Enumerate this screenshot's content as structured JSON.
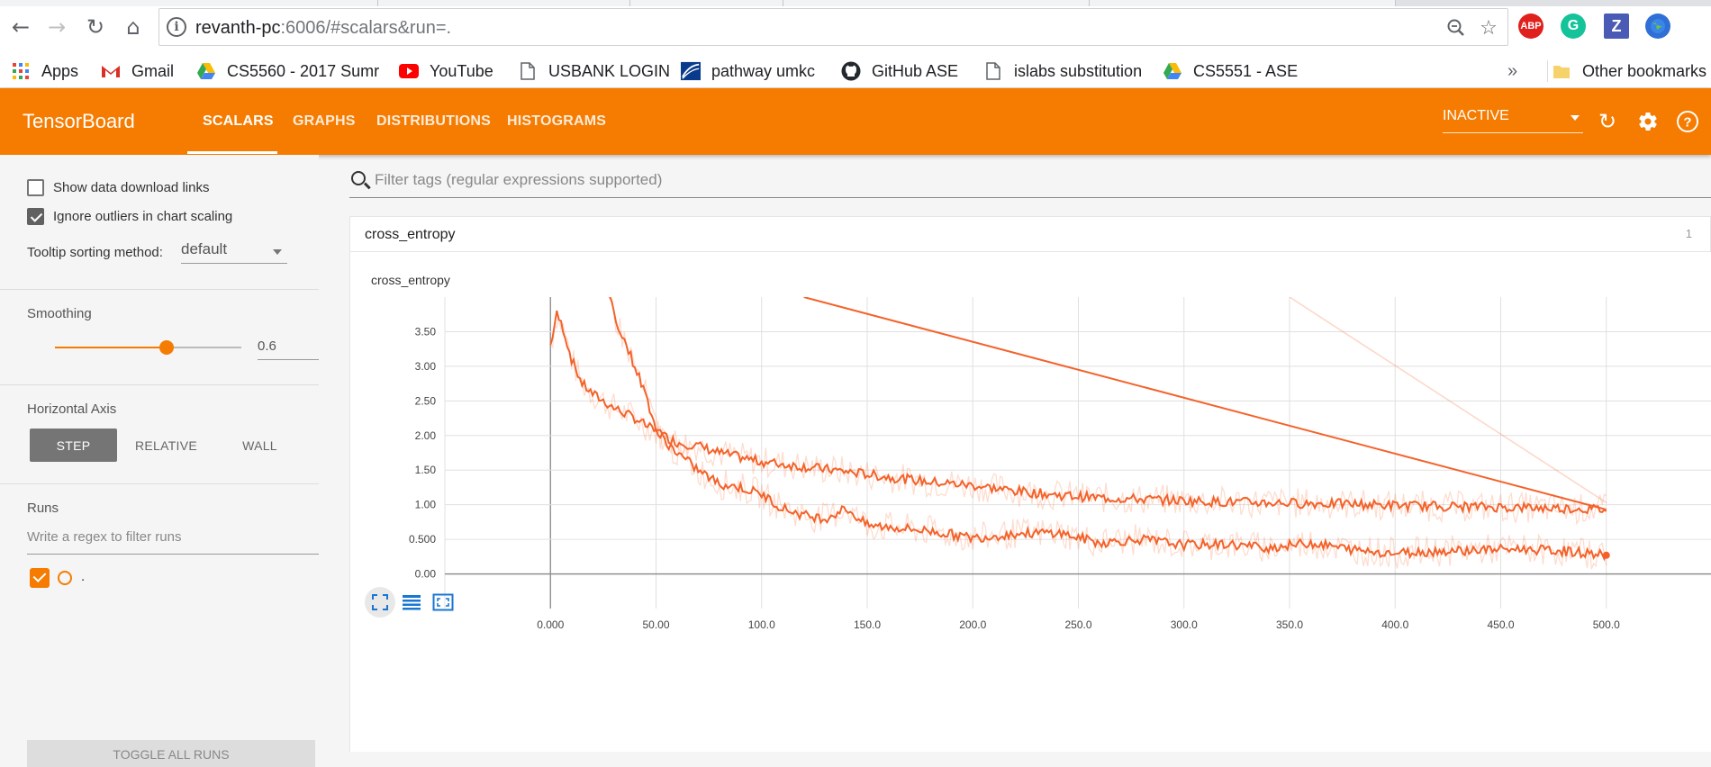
{
  "browser": {
    "url_host": "revanth-pc",
    "url_rest": ":6006/#scalars&run=.",
    "extensions": [
      "ABP",
      "G",
      "Z",
      "globe"
    ]
  },
  "bookmarks": {
    "items": [
      {
        "label": "Apps",
        "icon": "apps-grid-icon"
      },
      {
        "label": "Gmail",
        "icon": "gmail-icon"
      },
      {
        "label": "CS5560 - 2017 Sumr",
        "icon": "drive-icon"
      },
      {
        "label": "YouTube",
        "icon": "youtube-icon"
      },
      {
        "label": "USBANK LOGIN",
        "icon": "page-icon"
      },
      {
        "label": "pathway umkc",
        "icon": "pathway-icon"
      },
      {
        "label": "GitHub ASE",
        "icon": "github-icon"
      },
      {
        "label": "islabs substitution",
        "icon": "page-icon"
      },
      {
        "label": "CS5551 - ASE",
        "icon": "drive-icon"
      }
    ],
    "overflow": "»",
    "other": "Other bookmarks"
  },
  "header": {
    "title": "TensorBoard",
    "tabs": [
      "SCALARS",
      "GRAPHS",
      "DISTRIBUTIONS",
      "HISTOGRAMS"
    ],
    "active_tab": "SCALARS",
    "status": "INACTIVE",
    "accent": "#f57c00"
  },
  "sidebar": {
    "show_download": "Show data download links",
    "ignore_outliers": "Ignore outliers in chart scaling",
    "show_download_checked": false,
    "ignore_outliers_checked": true,
    "tooltip_label": "Tooltip sorting method:",
    "tooltip_value": "default",
    "smoothing_label": "Smoothing",
    "smoothing_value": "0.6",
    "smoothing_level": 0.6,
    "haxis_label": "Horizontal Axis",
    "haxis_options": [
      "STEP",
      "RELATIVE",
      "WALL"
    ],
    "haxis_selected": "STEP",
    "runs_label": "Runs",
    "runs_placeholder": "Write a regex to filter runs",
    "run_name": ".",
    "run_checked": true,
    "toggle_all": "TOGGLE ALL RUNS"
  },
  "main": {
    "filter_placeholder": "Filter tags (regular expressions supported)",
    "category": "cross_entropy",
    "category_count": "1",
    "chart_title": "cross_entropy"
  },
  "chart_data": {
    "type": "line",
    "title": "cross_entropy",
    "xlabel": "",
    "ylabel": "",
    "x_ticks": [
      "0.000",
      "50.00",
      "100.0",
      "150.0",
      "200.0",
      "250.0",
      "300.0",
      "350.0",
      "400.0",
      "450.0",
      "500.0"
    ],
    "y_ticks": [
      "0.00",
      "0.500",
      "1.00",
      "1.50",
      "2.00",
      "2.50",
      "3.00",
      "3.50"
    ],
    "xlim": [
      -50,
      550
    ],
    "ylim": [
      -0.5,
      4.0
    ],
    "grid": true,
    "color": "#f4622a",
    "series": [
      {
        "x": [
          0,
          3,
          6,
          10,
          15,
          20,
          25,
          30,
          40,
          50,
          60,
          70,
          80,
          100,
          120,
          140,
          160,
          180,
          200,
          220,
          240,
          260,
          280,
          300,
          320,
          340,
          360,
          380,
          400,
          420,
          440,
          460,
          480,
          500
        ],
        "values": [
          3.3,
          3.75,
          3.55,
          3.1,
          2.75,
          2.6,
          2.5,
          2.4,
          2.25,
          2.05,
          1.9,
          1.85,
          1.75,
          1.62,
          1.55,
          1.48,
          1.4,
          1.33,
          1.28,
          1.2,
          1.14,
          1.1,
          1.08,
          1.06,
          1.04,
          1.03,
          1.02,
          1.01,
          0.99,
          0.98,
          0.97,
          0.96,
          0.95,
          0.93
        ]
      },
      {
        "x": [
          28,
          32,
          36,
          40,
          45,
          50,
          55,
          60,
          70,
          80,
          90,
          100,
          110,
          120,
          130,
          140,
          150,
          160,
          180,
          200,
          220,
          240,
          260,
          280,
          300,
          320,
          340,
          360,
          380,
          400,
          420,
          440,
          460,
          480,
          500
        ],
        "values": [
          4.0,
          3.6,
          3.3,
          3.0,
          2.6,
          2.1,
          1.9,
          1.75,
          1.5,
          1.3,
          1.25,
          1.15,
          0.95,
          0.85,
          0.8,
          0.95,
          0.7,
          0.68,
          0.62,
          0.52,
          0.58,
          0.6,
          0.45,
          0.5,
          0.42,
          0.43,
          0.38,
          0.45,
          0.35,
          0.3,
          0.33,
          0.35,
          0.36,
          0.33,
          0.27
        ]
      },
      {
        "x": [
          120,
          500
        ],
        "values": [
          4.0,
          0.93
        ]
      }
    ]
  }
}
